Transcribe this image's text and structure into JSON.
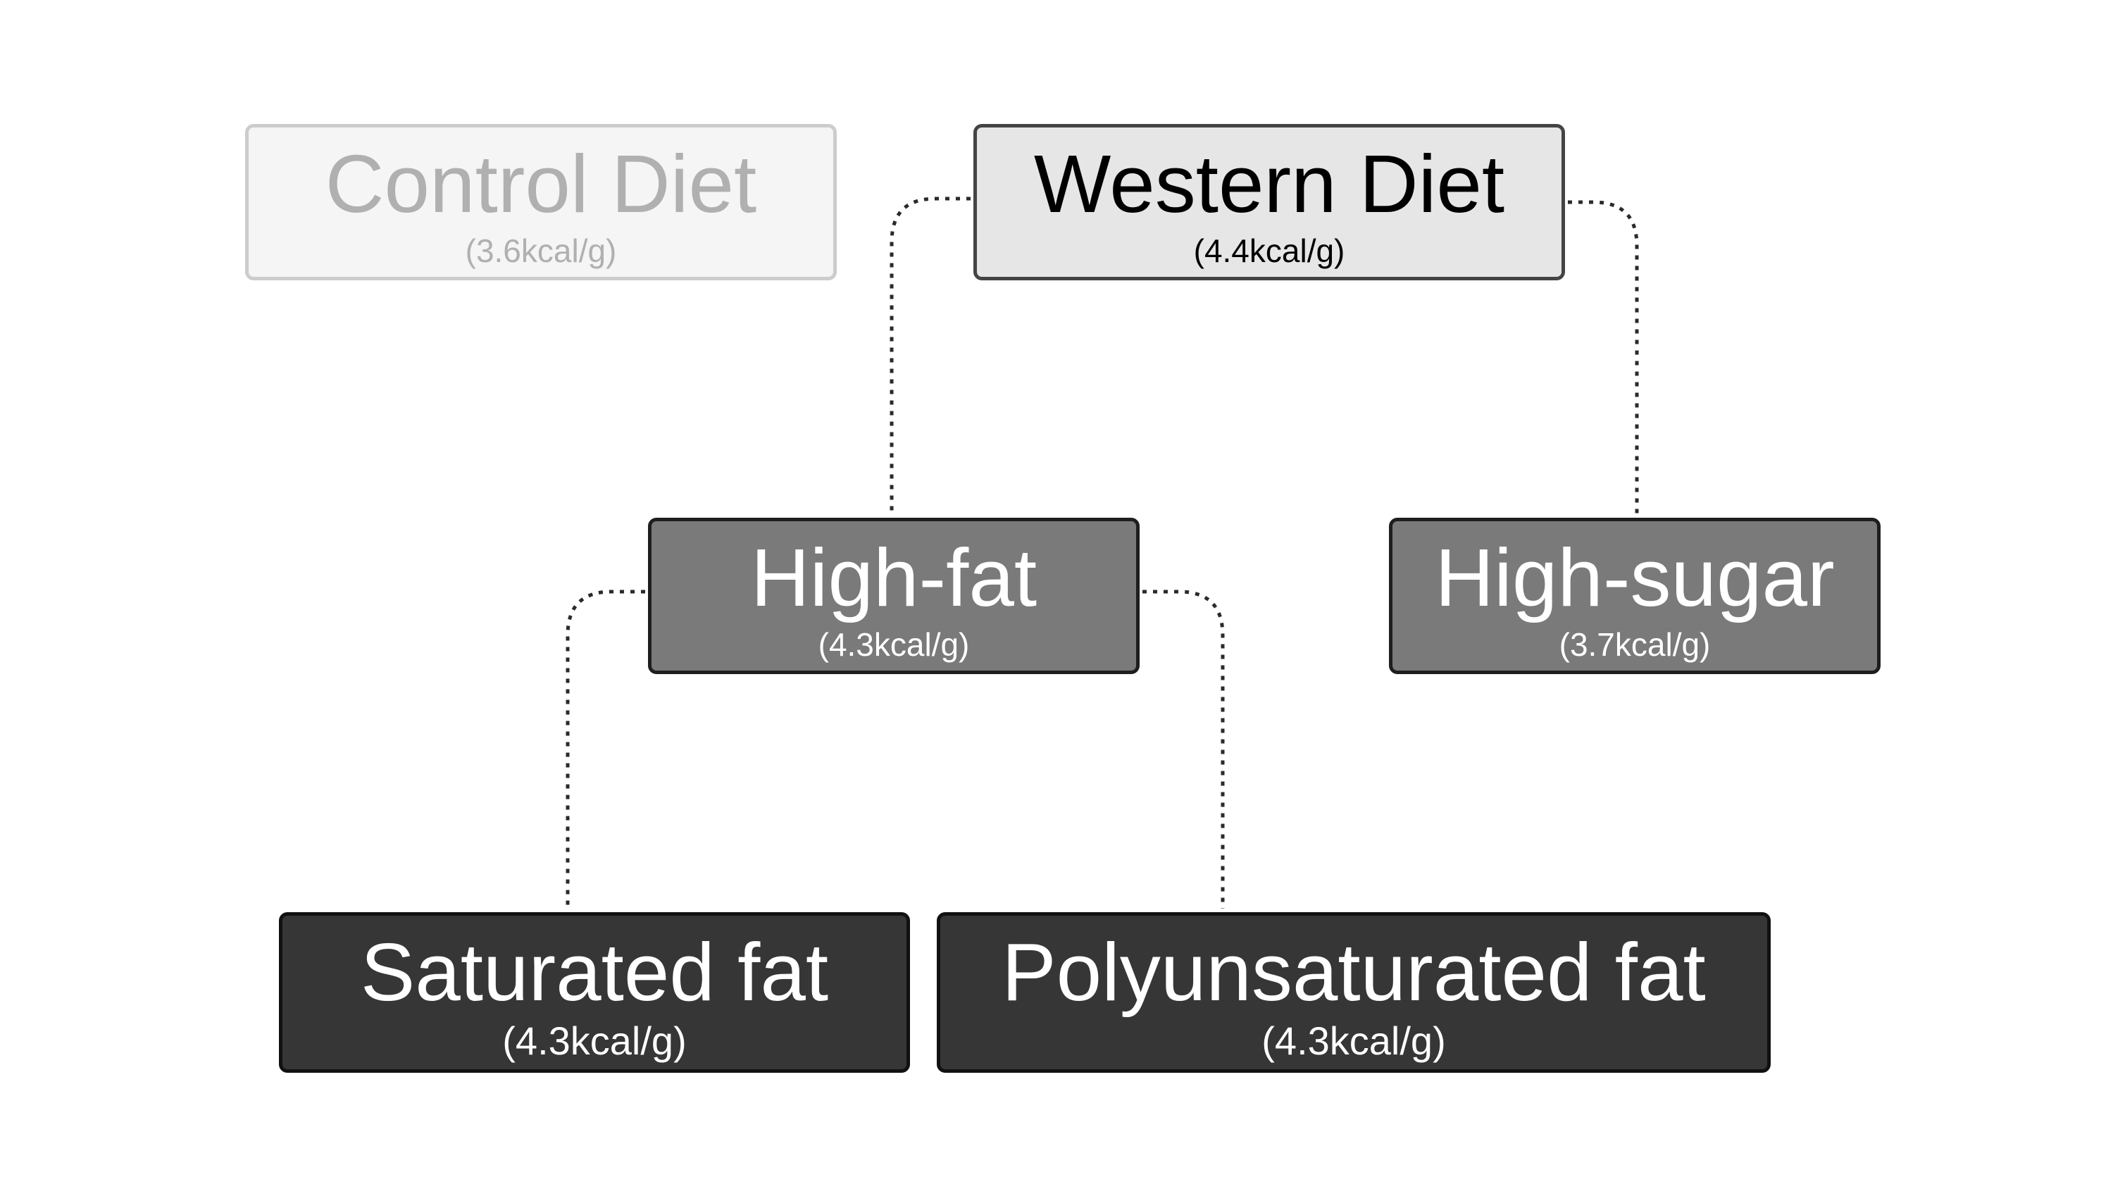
{
  "nodes": {
    "control": {
      "title": "Control Diet",
      "subtitle": "(3.6kcal/g)"
    },
    "western": {
      "title": "Western Diet",
      "subtitle": "(4.4kcal/g)"
    },
    "high_fat": {
      "title": "High-fat",
      "subtitle": "(4.3kcal/g)"
    },
    "high_sugar": {
      "title": "High-sugar",
      "subtitle": "(3.7kcal/g)"
    },
    "saturated_fat": {
      "title": "Saturated fat",
      "subtitle": "(4.3kcal/g)"
    },
    "polyunsaturated_fat": {
      "title": "Polyunsaturated fat",
      "subtitle": "(4.3kcal/g)"
    }
  },
  "edges": [
    {
      "from": "western",
      "to": "high_fat"
    },
    {
      "from": "western",
      "to": "high_sugar"
    },
    {
      "from": "high_fat",
      "to": "saturated_fat"
    },
    {
      "from": "high_fat",
      "to": "polyunsaturated_fat"
    }
  ],
  "colors": {
    "control_fill": "#f5f5f5",
    "western_fill": "#e6e6e6",
    "mid_fill": "#7a7a7a",
    "leaf_fill": "#363636",
    "connector": "#2a2a2a"
  }
}
